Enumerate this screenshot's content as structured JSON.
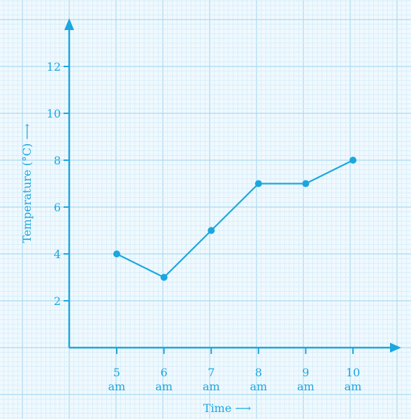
{
  "chart_data": {
    "type": "line",
    "x_labels": [
      [
        "5",
        "am"
      ],
      [
        "6",
        "am"
      ],
      [
        "7",
        "am"
      ],
      [
        "8",
        "am"
      ],
      [
        "9",
        "am"
      ],
      [
        "10",
        "am"
      ]
    ],
    "x": [
      5,
      6,
      7,
      8,
      9,
      10
    ],
    "y": [
      4,
      3,
      5,
      7,
      7,
      8
    ],
    "xlabel": "Time ⟶",
    "ylabel": "Temperature (°C) ⟶",
    "y_ticks": [
      "2",
      "4",
      "6",
      "8",
      "10",
      "12"
    ],
    "ylim": [
      0,
      14
    ],
    "grid": true
  },
  "colors": {
    "axis": "#1aa7e0",
    "grid_fine": "#d4ecf8",
    "grid_major": "#a9d9f1",
    "grid_background": "#f0f9fe"
  }
}
